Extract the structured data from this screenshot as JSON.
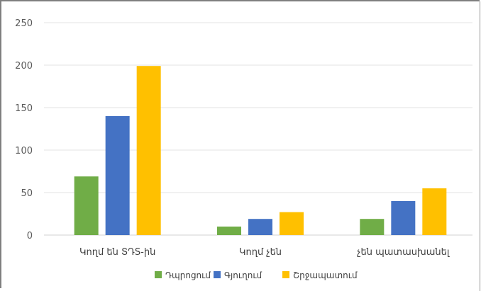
{
  "chart_data": {
    "type": "bar",
    "categories": [
      "Կողմ են ՏԴS-ին",
      "Կողմ չեն",
      "չեն պատասխանել"
    ],
    "series": [
      {
        "name": "Դպրոցում",
        "values": [
          69,
          10,
          19
        ],
        "color": "#70ad47"
      },
      {
        "name": "Գյուղում",
        "values": [
          140,
          19,
          40
        ],
        "color": "#4472c4"
      },
      {
        "name": "Շրջապատում",
        "values": [
          199,
          27,
          55
        ],
        "color": "#ffc000"
      }
    ],
    "ylim": [
      0,
      250
    ],
    "yticks": [
      "0",
      "50",
      "100",
      "150",
      "200",
      "250"
    ],
    "grid": true,
    "legend_position": "bottom"
  }
}
